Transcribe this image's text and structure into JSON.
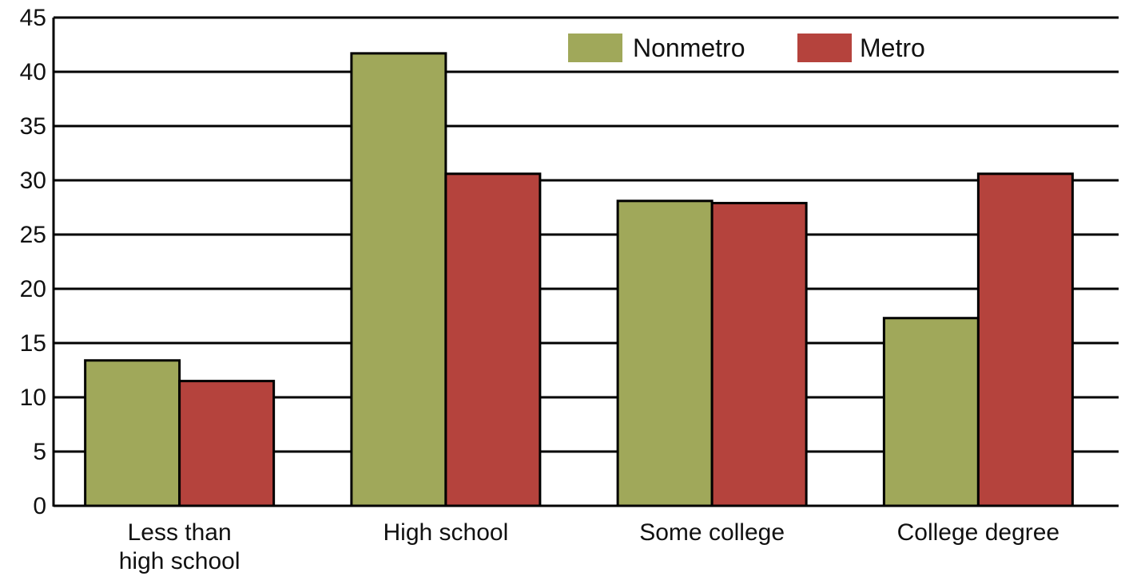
{
  "chart_data": {
    "type": "bar",
    "categories": [
      "Less than high school",
      "High school",
      "Some college",
      "College degree"
    ],
    "category_label_lines": [
      [
        "Less than",
        "high school"
      ],
      [
        "High school"
      ],
      [
        "Some college"
      ],
      [
        "College degree"
      ]
    ],
    "series": [
      {
        "name": "Nonmetro",
        "color": "#a0a85a",
        "values": [
          13.4,
          41.7,
          28.1,
          17.3
        ]
      },
      {
        "name": "Metro",
        "color": "#b5433d",
        "values": [
          11.5,
          30.6,
          27.9,
          30.6
        ]
      }
    ],
    "yticks": [
      "0",
      "5",
      "10",
      "15",
      "20",
      "25",
      "30",
      "35",
      "40",
      "45"
    ],
    "ylim": [
      0,
      45
    ],
    "grid": true,
    "legend_position": "top-right",
    "title": "",
    "xlabel": "",
    "ylabel": ""
  }
}
